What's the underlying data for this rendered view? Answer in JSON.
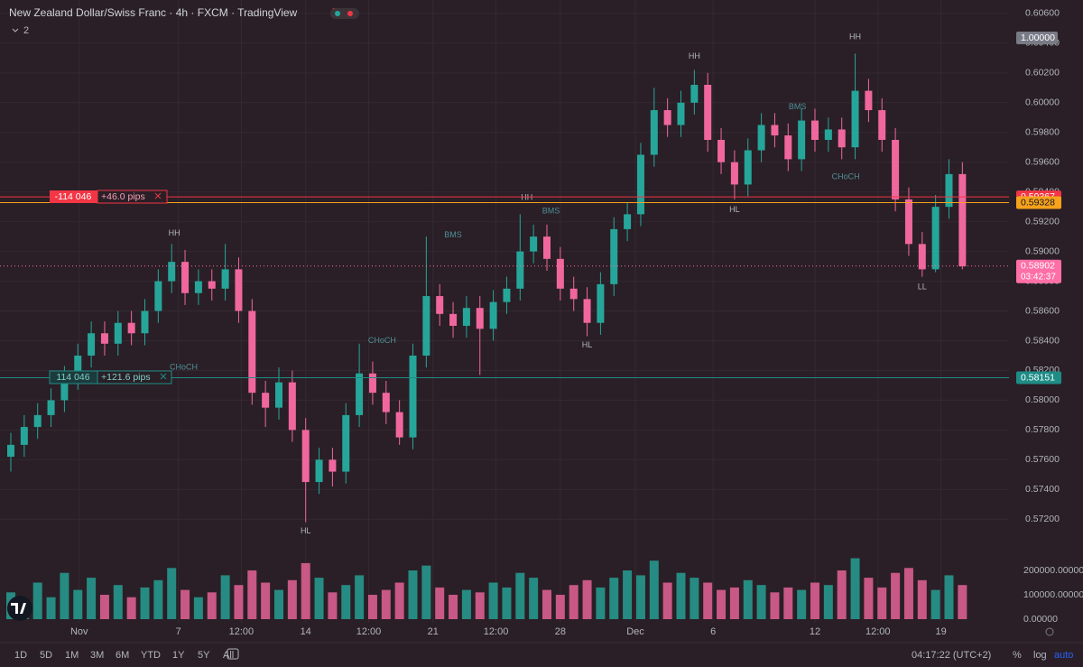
{
  "header": {
    "title": "New Zealand Dollar/Swiss Franc · 4h · FXCM · TradingView",
    "indicators": "2"
  },
  "chart_data": {
    "type": "candlestick",
    "ylim": [
      0.5705,
      0.6066
    ],
    "yticks": [
      {
        "value": 0.572,
        "label": "0.57200"
      },
      {
        "value": 0.574,
        "label": "0.57400"
      },
      {
        "value": 0.576,
        "label": "0.57600"
      },
      {
        "value": 0.578,
        "label": "0.57800"
      },
      {
        "value": 0.58,
        "label": "0.58000"
      },
      {
        "value": 0.582,
        "label": "0.58200"
      },
      {
        "value": 0.584,
        "label": "0.58400"
      },
      {
        "value": 0.586,
        "label": "0.58600"
      },
      {
        "value": 0.588,
        "label": "0.58800"
      },
      {
        "value": 0.59,
        "label": "0.59000"
      },
      {
        "value": 0.592,
        "label": "0.59200"
      },
      {
        "value": 0.594,
        "label": "0.59400"
      },
      {
        "value": 0.596,
        "label": "0.59600"
      },
      {
        "value": 0.598,
        "label": "0.59800"
      },
      {
        "value": 0.6,
        "label": "0.60000"
      },
      {
        "value": 0.602,
        "label": "0.60200"
      },
      {
        "value": 0.604,
        "label": "0.60400"
      },
      {
        "value": 0.606,
        "label": "0.60600"
      }
    ],
    "xticks": [
      {
        "value": 5.1,
        "label": "Nov"
      },
      {
        "value": 12.5,
        "label": "7"
      },
      {
        "value": 17.2,
        "label": "12:00"
      },
      {
        "value": 22,
        "label": "14"
      },
      {
        "value": 26.7,
        "label": "12:00"
      },
      {
        "value": 31.5,
        "label": "21"
      },
      {
        "value": 36.2,
        "label": "12:00"
      },
      {
        "value": 41,
        "label": "28"
      },
      {
        "value": 46.6,
        "label": "Dec"
      },
      {
        "value": 52.4,
        "label": "6"
      },
      {
        "value": 60,
        "label": "12"
      },
      {
        "value": 64.7,
        "label": "12:00"
      },
      {
        "value": 69.4,
        "label": "19"
      }
    ],
    "up_color": "#26a69a",
    "down_color": "#f0679e",
    "open": [
      0.5762,
      0.577,
      0.5782,
      0.579,
      0.58,
      0.5815,
      0.583,
      0.5845,
      0.5838,
      0.5852,
      0.5845,
      0.586,
      0.588,
      0.5893,
      0.5872,
      0.588,
      0.5875,
      0.5888,
      0.586,
      0.5805,
      0.5795,
      0.5812,
      0.578,
      0.5745,
      0.576,
      0.5752,
      0.579,
      0.5818,
      0.5805,
      0.5792,
      0.5775,
      0.583,
      0.587,
      0.5858,
      0.585,
      0.5862,
      0.5848,
      0.5866,
      0.5875,
      0.59,
      0.591,
      0.5895,
      0.5875,
      0.5868,
      0.5852,
      0.5878,
      0.5915,
      0.5925,
      0.5965,
      0.5995,
      0.5985,
      0.6,
      0.6012,
      0.5975,
      0.596,
      0.5945,
      0.5968,
      0.5985,
      0.5978,
      0.5962,
      0.5988,
      0.5975,
      0.5982,
      0.597,
      0.6008,
      0.5995,
      0.5975,
      0.5935,
      0.5905,
      0.5888,
      0.593,
      0.5952
    ],
    "close": [
      0.577,
      0.5782,
      0.579,
      0.58,
      0.5815,
      0.583,
      0.5845,
      0.5838,
      0.5852,
      0.5845,
      0.586,
      0.588,
      0.5893,
      0.5872,
      0.588,
      0.5875,
      0.5888,
      0.586,
      0.5805,
      0.5795,
      0.5812,
      0.578,
      0.5745,
      0.576,
      0.5752,
      0.579,
      0.5818,
      0.5805,
      0.5792,
      0.5775,
      0.583,
      0.587,
      0.5858,
      0.585,
      0.5862,
      0.5848,
      0.5866,
      0.5875,
      0.59,
      0.591,
      0.5895,
      0.5875,
      0.5868,
      0.5852,
      0.5878,
      0.5915,
      0.5925,
      0.5965,
      0.5995,
      0.5985,
      0.6,
      0.6012,
      0.5975,
      0.596,
      0.5945,
      0.5968,
      0.5985,
      0.5978,
      0.5962,
      0.5988,
      0.5975,
      0.5982,
      0.597,
      0.6008,
      0.5995,
      0.5975,
      0.5935,
      0.5905,
      0.5888,
      0.593,
      0.5952,
      0.589
    ],
    "high": [
      0.5778,
      0.579,
      0.5798,
      0.5808,
      0.5823,
      0.5838,
      0.5853,
      0.5853,
      0.586,
      0.586,
      0.5868,
      0.5888,
      0.5905,
      0.5901,
      0.5888,
      0.5888,
      0.5905,
      0.5896,
      0.5868,
      0.5813,
      0.5822,
      0.582,
      0.5788,
      0.5768,
      0.5768,
      0.5798,
      0.5838,
      0.5826,
      0.5813,
      0.58,
      0.5838,
      0.591,
      0.5878,
      0.5866,
      0.587,
      0.587,
      0.5874,
      0.5883,
      0.5925,
      0.5918,
      0.5918,
      0.5903,
      0.5883,
      0.5876,
      0.5886,
      0.5923,
      0.5933,
      0.5973,
      0.601,
      0.6003,
      0.6008,
      0.6022,
      0.602,
      0.5983,
      0.5968,
      0.5976,
      0.5993,
      0.5993,
      0.5986,
      0.5996,
      0.5996,
      0.599,
      0.599,
      0.6033,
      0.6016,
      0.6003,
      0.5983,
      0.5943,
      0.5913,
      0.5938,
      0.5962,
      0.596
    ],
    "low": [
      0.5752,
      0.5762,
      0.5774,
      0.5782,
      0.5792,
      0.5807,
      0.5822,
      0.583,
      0.583,
      0.5837,
      0.5837,
      0.5852,
      0.5872,
      0.5864,
      0.5864,
      0.5867,
      0.5867,
      0.5852,
      0.5797,
      0.5782,
      0.5787,
      0.5772,
      0.5718,
      0.5737,
      0.5742,
      0.5744,
      0.5782,
      0.5797,
      0.5784,
      0.577,
      0.5767,
      0.5822,
      0.585,
      0.5842,
      0.5842,
      0.5817,
      0.584,
      0.5858,
      0.5867,
      0.5892,
      0.5887,
      0.5867,
      0.586,
      0.5843,
      0.5844,
      0.587,
      0.5907,
      0.5917,
      0.5957,
      0.5977,
      0.5977,
      0.5992,
      0.5967,
      0.5952,
      0.5935,
      0.5937,
      0.596,
      0.597,
      0.5954,
      0.5954,
      0.5967,
      0.5967,
      0.5962,
      0.5962,
      0.5987,
      0.5967,
      0.5927,
      0.5897,
      0.5883,
      0.5886,
      0.5922,
      0.5888
    ],
    "volume": [
      110000,
      80000,
      150000,
      90000,
      190000,
      120000,
      170000,
      100000,
      140000,
      90000,
      130000,
      160000,
      210000,
      120000,
      90000,
      110000,
      180000,
      140000,
      200000,
      150000,
      120000,
      160000,
      230000,
      170000,
      110000,
      140000,
      180000,
      100000,
      120000,
      150000,
      200000,
      220000,
      130000,
      100000,
      120000,
      110000,
      150000,
      130000,
      190000,
      170000,
      120000,
      100000,
      140000,
      160000,
      130000,
      170000,
      200000,
      180000,
      240000,
      150000,
      190000,
      170000,
      150000,
      120000,
      130000,
      160000,
      140000,
      110000,
      130000,
      120000,
      150000,
      140000,
      200000,
      250000,
      170000,
      130000,
      190000,
      210000,
      160000,
      120000,
      180000,
      140000
    ],
    "volume_ylim": [
      0,
      300000
    ],
    "volume_ticks": [
      {
        "value": 0,
        "label": "0.00000"
      },
      {
        "value": 100000,
        "label": "100000.00000"
      },
      {
        "value": 200000,
        "label": "200000.00000"
      }
    ],
    "price_lines": [
      {
        "value": 0.59367,
        "color": "#f23645"
      },
      {
        "value": 0.59328,
        "color": "#f7a21b"
      },
      {
        "value": 0.58902,
        "color": "#ff6fa7",
        "countdown": "03:42:37"
      },
      {
        "value": 0.58151,
        "color": "#1e8c86"
      }
    ],
    "scale_label": "1.00000",
    "annotations": [
      {
        "text": "HH",
        "x": 12.2,
        "price": 0.5912
      },
      {
        "text": "HL",
        "x": 22,
        "price": 0.5712
      },
      {
        "text": "HH",
        "x": 38.5,
        "price": 0.5936
      },
      {
        "text": "HL",
        "x": 43,
        "price": 0.5837
      },
      {
        "text": "HH",
        "x": 51,
        "price": 0.6031
      },
      {
        "text": "HL",
        "x": 54,
        "price": 0.5928
      },
      {
        "text": "HH",
        "x": 63,
        "price": 0.6044
      },
      {
        "text": "LL",
        "x": 68,
        "price": 0.5876
      },
      {
        "text": "BMS",
        "x": 33,
        "price": 0.5911
      },
      {
        "text": "BMS",
        "x": 40.3,
        "price": 0.5927
      },
      {
        "text": "BMS",
        "x": 58.7,
        "price": 0.5997
      },
      {
        "text": "CHoCH",
        "x": 27.7,
        "price": 0.584
      },
      {
        "text": "CHoCH",
        "x": 12.9,
        "price": 0.5822
      },
      {
        "text": "CHoCH",
        "x": 62.3,
        "price": 0.595
      }
    ]
  },
  "positions": [
    {
      "quantity": "-114 046",
      "result": "+46.0 pips"
    },
    {
      "quantity": "114 046",
      "result": "+121.6 pips"
    }
  ],
  "toolbar": {
    "ranges": [
      "1D",
      "5D",
      "1M",
      "3M",
      "6M",
      "YTD",
      "1Y",
      "5Y",
      "All"
    ],
    "time": "04:17:22 (UTC+2)",
    "percent": "%",
    "log": "log",
    "auto": "auto"
  }
}
